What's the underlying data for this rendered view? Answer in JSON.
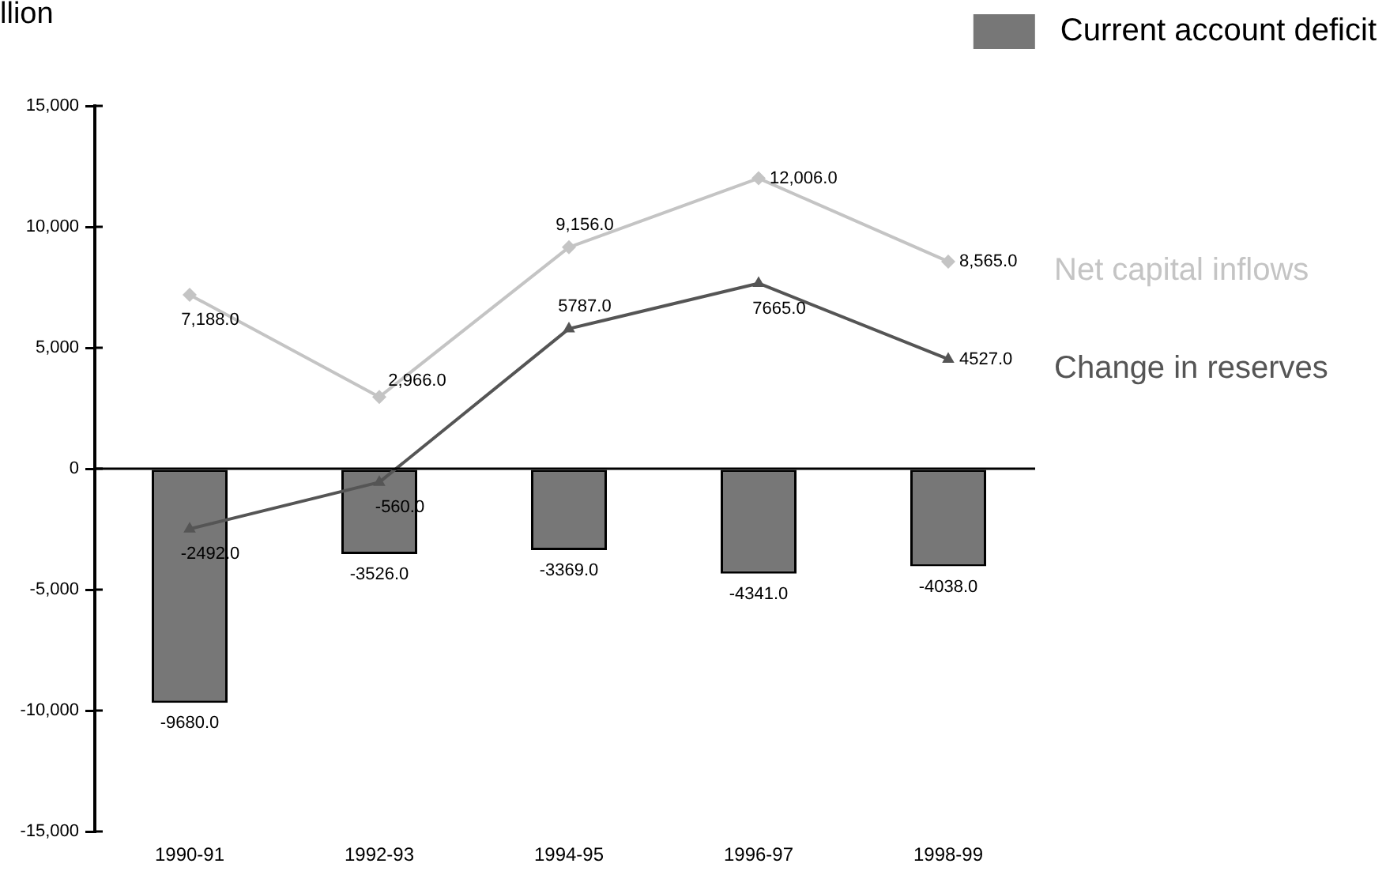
{
  "chart_data": {
    "type": "bar",
    "ylabel": "llion",
    "legend": "top right",
    "categories": [
      "1990-91",
      "1992-93",
      "1994-95",
      "1996-97",
      "1998-99"
    ],
    "series": [
      {
        "name": "Current account deficit",
        "color": "#777777",
        "values": [
          -9680,
          -3526,
          -3369,
          -4341,
          -4038
        ],
        "value_labels": [
          "-9680.0",
          "-3526.0",
          "-3369.0",
          "-4341.0",
          "-4038.0"
        ]
      },
      {
        "name": "Net capital inflows",
        "type": "line",
        "color": "#c4c4c4",
        "marker": "diamond",
        "values": [
          7188,
          2966,
          9156,
          12006,
          8565
        ],
        "value_labels": [
          "7,188.0",
          "2,966.0",
          "9,156.0",
          "12,006.0",
          "8,565.0"
        ]
      },
      {
        "name": "Change in reserves",
        "type": "line",
        "color": "#555555",
        "marker": "triangle",
        "values": [
          -2492,
          -560,
          5787,
          7665,
          4527
        ],
        "value_labels": [
          "-2492.0",
          "-560.0",
          "5787.0",
          "7665.0",
          "4527.0"
        ]
      }
    ],
    "ylim": [
      -15000,
      15000
    ],
    "yticks": [
      {
        "value": -15000,
        "label": "-15,000"
      },
      {
        "value": -10000,
        "label": "-10,000"
      },
      {
        "value": -5000,
        "label": "-5,000"
      },
      0,
      {
        "value": 5000,
        "label": "5,000"
      },
      {
        "value": 10000,
        "label": "10,000"
      },
      {
        "value": 15000,
        "label": "15,000"
      }
    ]
  }
}
